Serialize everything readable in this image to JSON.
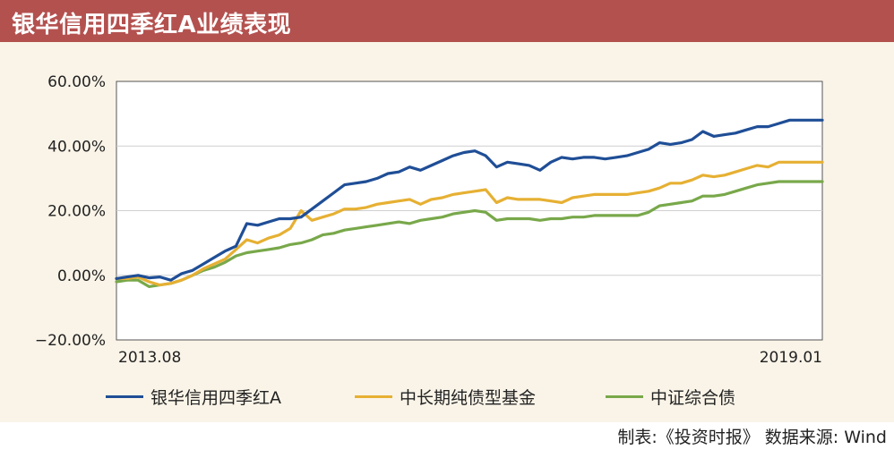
{
  "header": {
    "title": "银华信用四季红A业绩表现"
  },
  "source_note": "制表:《投资时报》 数据来源: Wind",
  "colors": {
    "title_bg": "#b3514f",
    "panel_bg": "#faf4e8"
  },
  "chart_data": {
    "type": "line",
    "title": "银华信用四季红A业绩表现",
    "x": [
      "2013-08",
      "2013-09",
      "2013-10",
      "2013-11",
      "2013-12",
      "2014-01",
      "2014-02",
      "2014-03",
      "2014-04",
      "2014-05",
      "2014-06",
      "2014-07",
      "2014-08",
      "2014-09",
      "2014-10",
      "2014-11",
      "2014-12",
      "2015-01",
      "2015-02",
      "2015-03",
      "2015-04",
      "2015-05",
      "2015-06",
      "2015-07",
      "2015-08",
      "2015-09",
      "2015-10",
      "2015-11",
      "2015-12",
      "2016-01",
      "2016-02",
      "2016-03",
      "2016-04",
      "2016-05",
      "2016-06",
      "2016-07",
      "2016-08",
      "2016-09",
      "2016-10",
      "2016-11",
      "2016-12",
      "2017-01",
      "2017-02",
      "2017-03",
      "2017-04",
      "2017-05",
      "2017-06",
      "2017-07",
      "2017-08",
      "2017-09",
      "2017-10",
      "2017-11",
      "2017-12",
      "2018-01",
      "2018-02",
      "2018-03",
      "2018-04",
      "2018-05",
      "2018-06",
      "2018-07",
      "2018-08",
      "2018-09",
      "2018-10",
      "2018-11",
      "2018-12",
      "2019-01"
    ],
    "x_tick_labels": [
      "2013.08",
      "2019.01"
    ],
    "y_tick_labels": [
      "60.00%",
      "40.00%",
      "20.00%",
      "0.00%",
      "−20.00%"
    ],
    "ylim": [
      -20,
      60
    ],
    "y_ticks": [
      60,
      40,
      20,
      0,
      -20
    ],
    "legend_position": "bottom",
    "series": [
      {
        "name": "银华信用四季红A",
        "color": "#1f4e96",
        "values": [
          -1.0,
          -0.5,
          0.0,
          -0.8,
          -0.5,
          -1.5,
          0.5,
          1.5,
          3.5,
          5.5,
          7.5,
          9.0,
          16.0,
          15.5,
          16.5,
          17.5,
          17.5,
          18.0,
          20.5,
          23.0,
          25.5,
          28.0,
          28.5,
          29.0,
          30.0,
          31.5,
          32.0,
          33.5,
          32.5,
          34.0,
          35.5,
          37.0,
          38.0,
          38.5,
          37.0,
          33.5,
          35.0,
          34.5,
          34.0,
          32.5,
          35.0,
          36.5,
          36.0,
          36.5,
          36.5,
          36.0,
          36.5,
          37.0,
          38.0,
          39.0,
          41.0,
          40.5,
          41.0,
          42.0,
          44.5,
          43.0,
          43.5,
          44.0,
          45.0,
          46.0,
          46.0,
          47.0,
          48.0,
          48.0,
          48.0,
          48.0
        ]
      },
      {
        "name": "中长期纯债型基金",
        "color": "#e6b033",
        "values": [
          -1.0,
          -1.0,
          -0.5,
          -2.0,
          -3.0,
          -2.5,
          -1.5,
          0.0,
          2.0,
          3.5,
          5.0,
          8.0,
          11.0,
          10.0,
          11.5,
          12.5,
          14.5,
          20.0,
          17.0,
          18.0,
          19.0,
          20.5,
          20.5,
          21.0,
          22.0,
          22.5,
          23.0,
          23.5,
          22.0,
          23.5,
          24.0,
          25.0,
          25.5,
          26.0,
          26.5,
          22.5,
          24.0,
          23.5,
          23.5,
          23.5,
          23.0,
          22.5,
          24.0,
          24.5,
          25.0,
          25.0,
          25.0,
          25.0,
          25.5,
          26.0,
          27.0,
          28.5,
          28.5,
          29.5,
          31.0,
          30.5,
          31.0,
          32.0,
          33.0,
          34.0,
          33.5,
          35.0,
          35.0,
          35.0,
          35.0,
          35.0
        ]
      },
      {
        "name": "中证综合债",
        "color": "#78a84a",
        "values": [
          -2.0,
          -1.5,
          -1.5,
          -3.5,
          -3.0,
          -2.5,
          -1.5,
          0.0,
          1.5,
          2.5,
          4.0,
          6.0,
          7.0,
          7.5,
          8.0,
          8.5,
          9.5,
          10.0,
          11.0,
          12.5,
          13.0,
          14.0,
          14.5,
          15.0,
          15.5,
          16.0,
          16.5,
          16.0,
          17.0,
          17.5,
          18.0,
          19.0,
          19.5,
          20.0,
          19.5,
          17.0,
          17.5,
          17.5,
          17.5,
          17.0,
          17.5,
          17.5,
          18.0,
          18.0,
          18.5,
          18.5,
          18.5,
          18.5,
          18.5,
          19.5,
          21.5,
          22.0,
          22.5,
          23.0,
          24.5,
          24.5,
          25.0,
          26.0,
          27.0,
          28.0,
          28.5,
          29.0,
          29.0,
          29.0,
          29.0,
          29.0
        ]
      }
    ]
  }
}
